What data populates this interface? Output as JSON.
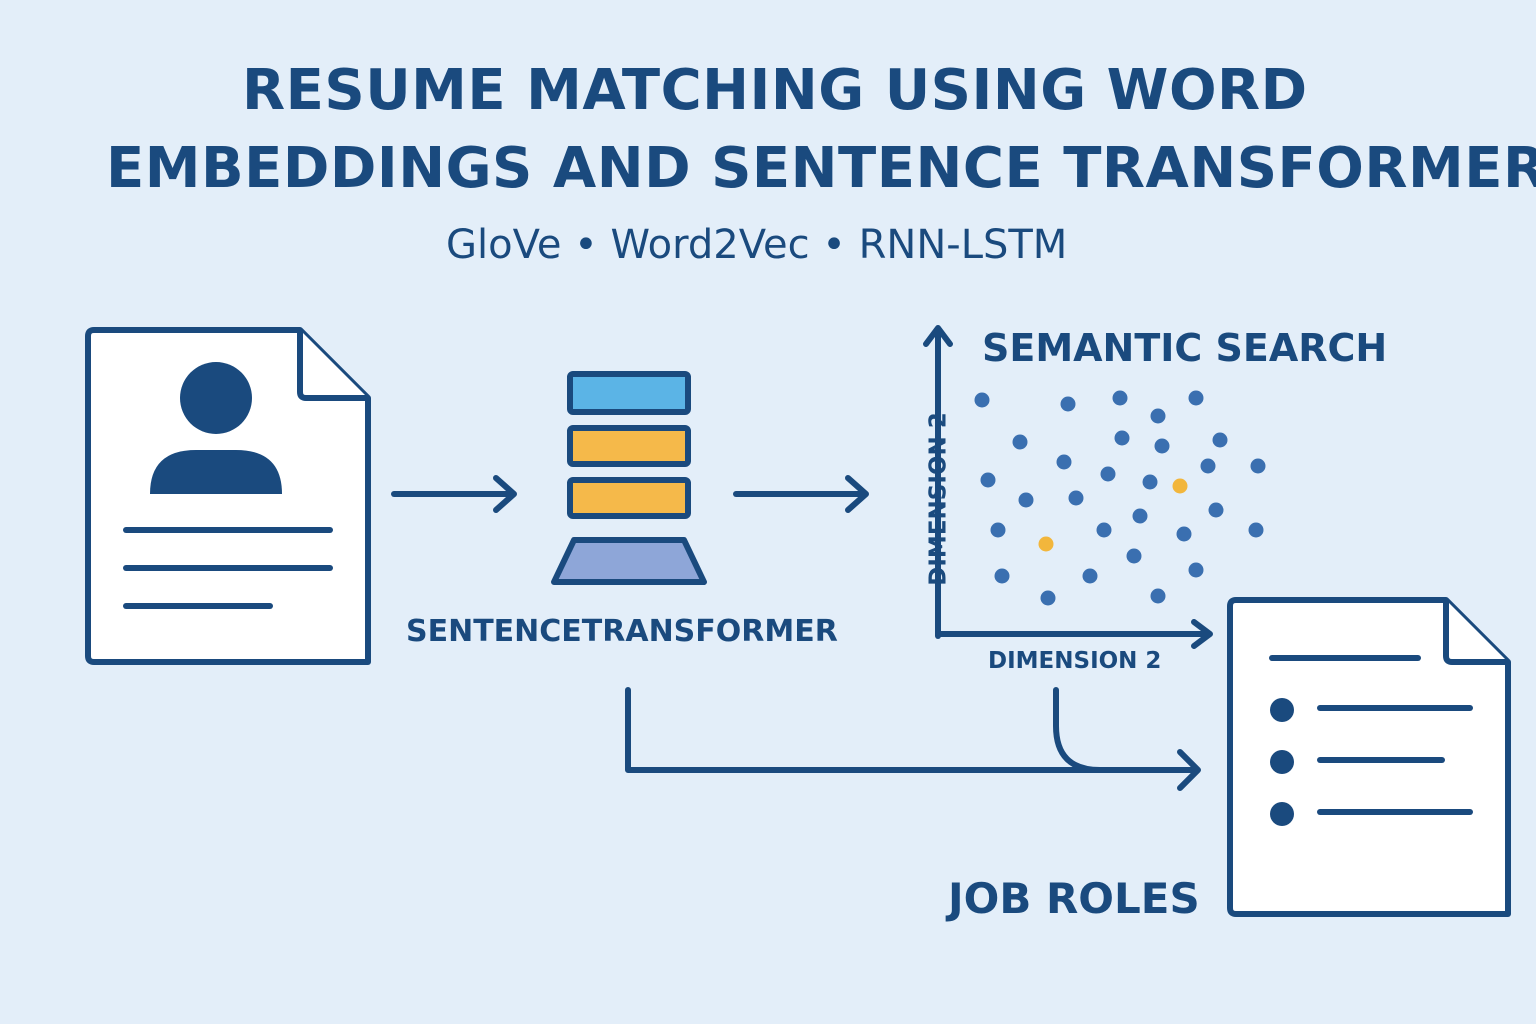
{
  "title": {
    "line1": "RESUME MATCHING USING WORD",
    "line2": "EMBEDDINGS AND SENTENCE TRANSFORMERS"
  },
  "subtitle": "GloVe • Word2Vec • RNN-LSTM",
  "transformer_label": "SENTENCETRANSFORMER",
  "semantic_search_label": "SEMANTIC SEARCH",
  "x_axis_label": "DIMENSION 2",
  "y_axis_label": "DIMENSION 2",
  "job_roles_label": "JOB ROLES",
  "icons": {
    "resume": "resume-document-icon",
    "model": "model-stack-icon",
    "job_doc": "job-list-document-icon"
  },
  "colors": {
    "primary": "#1a4a7e",
    "background": "#e3eef9",
    "dot": "#3a6fb0",
    "highlight_dot": "#f2b63c",
    "layer_blue": "#5bb4e6",
    "layer_orange": "#f5b94a",
    "base_purple": "#8ea6d8"
  }
}
